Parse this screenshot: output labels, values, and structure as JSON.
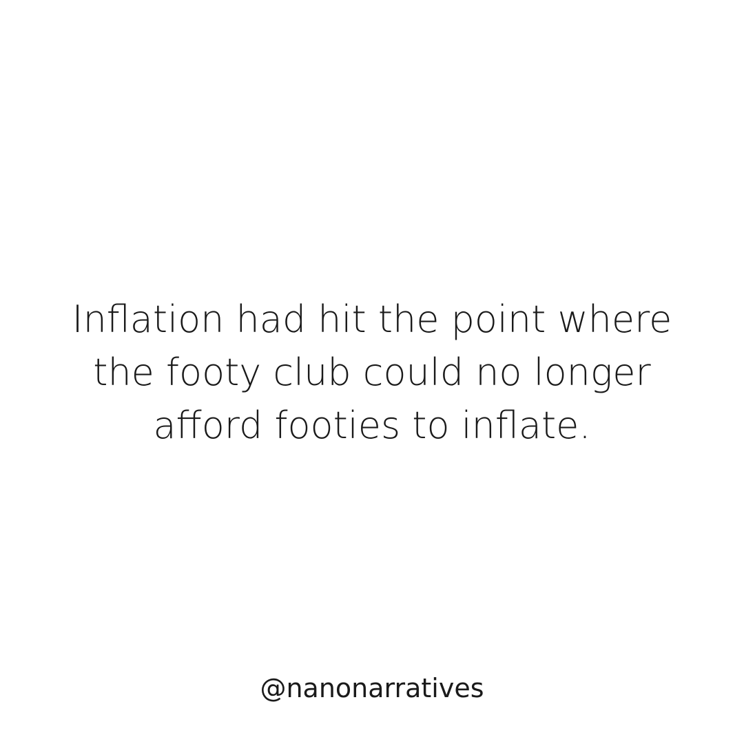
{
  "story": {
    "lines": [
      "Inflation had hit the point where",
      "the footy club could no longer",
      "afford footies to inflate."
    ]
  },
  "footer": {
    "handle": "@nanonarratives"
  }
}
